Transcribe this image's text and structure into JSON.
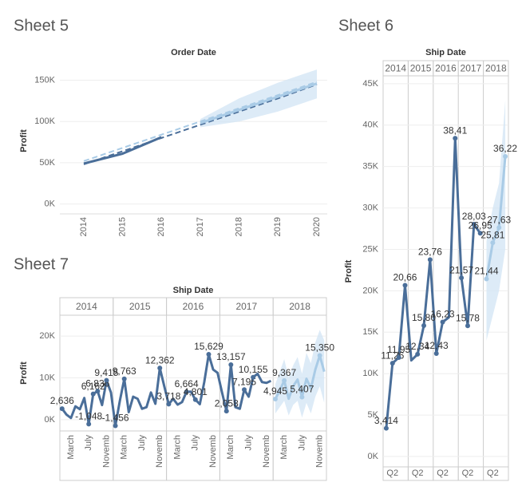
{
  "chart_data": [
    {
      "type": "line",
      "title": "Sheet 5",
      "x_label": "Order Date",
      "y_label": "Profit",
      "categories": [
        "2014",
        "2015",
        "2016",
        "2017",
        "2018",
        "2019",
        "2020"
      ],
      "ylim": [
        -12000,
        165000
      ],
      "yticks": [
        {
          "value": 0,
          "label": "0K"
        },
        {
          "value": 50000,
          "label": "50K"
        },
        {
          "value": 100000,
          "label": "100K"
        },
        {
          "value": 150000,
          "label": "150K"
        }
      ],
      "grid": true,
      "band": {
        "color": "#d4e6f5",
        "lower": [
          null,
          null,
          null,
          93000,
          100000,
          112000,
          128000
        ],
        "upper": [
          null,
          null,
          null,
          103000,
          128000,
          147000,
          163000
        ]
      },
      "series": [
        {
          "color": "#a9cbe6",
          "dashed": true,
          "values": [
            52000,
            68000,
            84000,
            100000,
            116000,
            132000,
            148000
          ]
        },
        {
          "color": "#4a6e99",
          "dashed": true,
          "values": [
            48000,
            64000,
            80000,
            96000,
            112000,
            128000,
            145000
          ]
        },
        {
          "color": "#4a6e99",
          "values": [
            49000,
            61000,
            81000,
            null,
            null,
            null,
            null
          ]
        },
        {
          "color": "#a9cbe6",
          "values": [
            null,
            null,
            null,
            98000,
            114000,
            130000,
            146000
          ]
        }
      ]
    },
    {
      "type": "line",
      "title": "Sheet 6",
      "x_label": "Ship Date",
      "y_label": "Profit",
      "columns": [
        "2014",
        "2015",
        "2016",
        "2017",
        "2018"
      ],
      "categories": [
        null,
        "Q2",
        null,
        null,
        null,
        "Q2",
        null,
        null,
        null,
        "Q2",
        null,
        null,
        null,
        "Q2",
        null,
        null,
        null,
        "Q2",
        null,
        null
      ],
      "ylim": [
        -1250,
        45950
      ],
      "yticks": [
        {
          "value": 0,
          "label": "0K"
        },
        {
          "value": 5000,
          "label": "5K"
        },
        {
          "value": 10000,
          "label": "10K"
        },
        {
          "value": 15000,
          "label": "15K"
        },
        {
          "value": 20000,
          "label": "20K"
        },
        {
          "value": 25000,
          "label": "25K"
        },
        {
          "value": 30000,
          "label": "30K"
        },
        {
          "value": 35000,
          "label": "35K"
        },
        {
          "value": 40000,
          "label": "40K"
        },
        {
          "value": 45000,
          "label": "45K"
        }
      ],
      "grid": true,
      "band": {
        "color": "#d4e6f5",
        "lower": [
          null,
          null,
          null,
          null,
          null,
          null,
          null,
          null,
          null,
          null,
          null,
          null,
          null,
          null,
          null,
          null,
          14000,
          17000,
          20000,
          25000
        ],
        "upper": [
          null,
          null,
          null,
          null,
          null,
          null,
          null,
          null,
          null,
          null,
          null,
          null,
          null,
          null,
          null,
          null,
          26000,
          30000,
          33000,
          43000
        ]
      },
      "series": [
        {
          "color": "#4a6e99",
          "values": [
            3414,
            11260,
            11950,
            20660,
            11600,
            12340,
            15800,
            23760,
            12430,
            16230,
            16800,
            38410,
            21570,
            15780,
            28030,
            26950,
            null,
            null,
            null,
            null
          ],
          "value_labels": [
            "3,414",
            "11,26",
            "11,95",
            "20,66",
            null,
            "12,34",
            "15,80",
            "23,76",
            "12,43",
            "16,23",
            null,
            "38,41",
            "21,57",
            "15,78",
            "28,03",
            "26,95",
            null,
            null,
            null,
            null
          ]
        },
        {
          "color": "#a9cbe6",
          "values": [
            null,
            null,
            null,
            null,
            null,
            null,
            null,
            null,
            null,
            null,
            null,
            null,
            null,
            null,
            null,
            null,
            21440,
            25810,
            27630,
            36220
          ],
          "value_labels": [
            null,
            null,
            null,
            null,
            null,
            null,
            null,
            null,
            null,
            null,
            null,
            null,
            null,
            null,
            null,
            null,
            "21,44",
            "25,81",
            "27,63",
            "36,22"
          ]
        }
      ]
    },
    {
      "type": "line",
      "title": "Sheet 7",
      "x_label": "Ship Date",
      "y_label": "Profit",
      "columns": [
        "2014",
        "2015",
        "2016",
        "2017",
        "2018"
      ],
      "categories": [
        null,
        null,
        "March",
        null,
        null,
        null,
        "July",
        null,
        null,
        null,
        "Novemb",
        null,
        null,
        null,
        "March",
        null,
        null,
        null,
        "July",
        null,
        null,
        null,
        "Novemb",
        null,
        null,
        null,
        "March",
        null,
        null,
        null,
        "July",
        null,
        null,
        null,
        "Novemb",
        null,
        null,
        null,
        "March",
        null,
        null,
        null,
        "July",
        null,
        null,
        null,
        "Novemb",
        null,
        null,
        null,
        "March",
        null,
        null,
        null,
        "July",
        null,
        null,
        null,
        "Novemb",
        null
      ],
      "ylim": [
        -2700,
        25000
      ],
      "yticks": [
        {
          "value": 0,
          "label": "0K"
        },
        {
          "value": 10000,
          "label": "10K"
        },
        {
          "value": 20000,
          "label": "20K"
        }
      ],
      "grid": true,
      "band": {
        "color": "#d4e6f5",
        "lower": [
          null,
          null,
          null,
          null,
          null,
          null,
          null,
          null,
          null,
          null,
          null,
          null,
          null,
          null,
          null,
          null,
          null,
          null,
          null,
          null,
          null,
          null,
          null,
          null,
          null,
          null,
          null,
          null,
          null,
          null,
          null,
          null,
          null,
          null,
          null,
          null,
          null,
          null,
          null,
          null,
          null,
          null,
          null,
          null,
          null,
          null,
          null,
          null,
          1500,
          3000,
          4500,
          1000,
          3500,
          4500,
          500,
          4000,
          1500,
          5500,
          8000,
          4000
        ],
        "upper": [
          null,
          null,
          null,
          null,
          null,
          null,
          null,
          null,
          null,
          null,
          null,
          null,
          null,
          null,
          null,
          null,
          null,
          null,
          null,
          null,
          null,
          null,
          null,
          null,
          null,
          null,
          null,
          null,
          null,
          null,
          null,
          null,
          null,
          null,
          null,
          null,
          null,
          null,
          null,
          null,
          null,
          null,
          null,
          null,
          null,
          null,
          null,
          null,
          8500,
          11500,
          14500,
          10000,
          13000,
          15000,
          11000,
          16000,
          13500,
          18500,
          21500,
          19000
        ]
      },
      "series": [
        {
          "color": "#4a6e99",
          "values": [
            2636,
            1200,
            400,
            3200,
            2500,
            5200,
            -1048,
            6162,
            6836,
            3500,
            9415,
            6500,
            -1456,
            4500,
            9763,
            1800,
            5500,
            5000,
            2600,
            3000,
            6500,
            3800,
            12362,
            8000,
            3718,
            5000,
            3600,
            4200,
            6664,
            6700,
            4801,
            3700,
            9000,
            15629,
            12000,
            11200,
            6500,
            2058,
            13157,
            3000,
            2600,
            7195,
            5500,
            10155,
            11000,
            9000,
            8800,
            9300,
            null,
            null,
            null,
            null,
            null,
            null,
            null,
            null,
            null,
            null,
            null,
            null
          ],
          "value_labels": [
            "2,636",
            null,
            null,
            null,
            null,
            null,
            "-1,048",
            "6,162",
            "6,836",
            null,
            "9,415",
            null,
            "-1,456",
            null,
            "9,763",
            null,
            null,
            null,
            null,
            null,
            null,
            null,
            "12,362",
            null,
            "3,718",
            null,
            null,
            null,
            "6,664",
            null,
            "4,801",
            null,
            null,
            "15,629",
            null,
            null,
            null,
            "2,058",
            "13,157",
            null,
            null,
            "7,195",
            null,
            "10,155",
            null,
            null,
            null,
            null,
            null,
            null,
            null,
            null,
            null,
            null,
            null,
            null,
            null,
            null,
            null,
            null
          ]
        },
        {
          "color": "#a9cbe6",
          "values": [
            null,
            null,
            null,
            null,
            null,
            null,
            null,
            null,
            null,
            null,
            null,
            null,
            null,
            null,
            null,
            null,
            null,
            null,
            null,
            null,
            null,
            null,
            null,
            null,
            null,
            null,
            null,
            null,
            null,
            null,
            null,
            null,
            null,
            null,
            null,
            null,
            null,
            null,
            null,
            null,
            null,
            null,
            null,
            null,
            null,
            null,
            null,
            null,
            4945,
            7000,
            9367,
            5000,
            8000,
            9600,
            5407,
            9800,
            7500,
            12000,
            15350,
            11500
          ],
          "value_labels": [
            null,
            null,
            null,
            null,
            null,
            null,
            null,
            null,
            null,
            null,
            null,
            null,
            null,
            null,
            null,
            null,
            null,
            null,
            null,
            null,
            null,
            null,
            null,
            null,
            null,
            null,
            null,
            null,
            null,
            null,
            null,
            null,
            null,
            null,
            null,
            null,
            null,
            null,
            null,
            null,
            null,
            null,
            null,
            null,
            null,
            null,
            null,
            null,
            "4,945",
            null,
            "9,367",
            null,
            null,
            null,
            "5,407",
            null,
            null,
            null,
            "15,350",
            null
          ]
        }
      ]
    }
  ]
}
